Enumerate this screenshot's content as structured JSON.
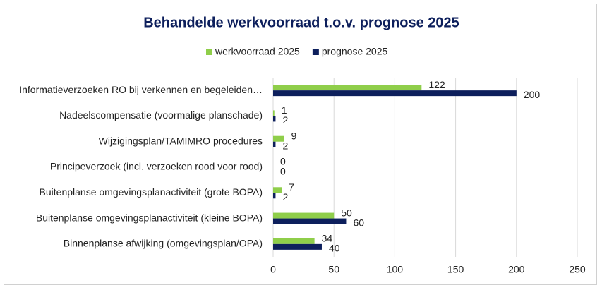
{
  "chart_data": {
    "type": "bar",
    "orientation": "horizontal",
    "title": "Behandelde werkvoorraad t.o.v. prognose 2025",
    "categories": [
      "Informatieverzoeken RO bij verkennen en begeleiden…",
      "Nadeelscompensatie (voormalige planschade)",
      "Wijzigingsplan/TAMIMRO procedures",
      "Principeverzoek (incl. verzoeken rood voor rood)",
      "Buitenplanse omgevingsplanactiviteit (grote BOPA)",
      "Buitenplanse omgevingsplanactiviteit (kleine BOPA)",
      "Binnenplanse afwijking (omgevingsplan/OPA)"
    ],
    "series": [
      {
        "name": "werkvoorraad 2025",
        "color": "#8fce4a",
        "values": [
          122,
          1,
          9,
          0,
          7,
          50,
          34
        ]
      },
      {
        "name": "prognose 2025",
        "color": "#0d1f5c",
        "values": [
          200,
          2,
          2,
          0,
          2,
          60,
          40
        ]
      }
    ],
    "xlim": [
      0,
      250
    ],
    "xticks": [
      0,
      50,
      100,
      150,
      200,
      250
    ],
    "grid": true,
    "legend": "top"
  }
}
